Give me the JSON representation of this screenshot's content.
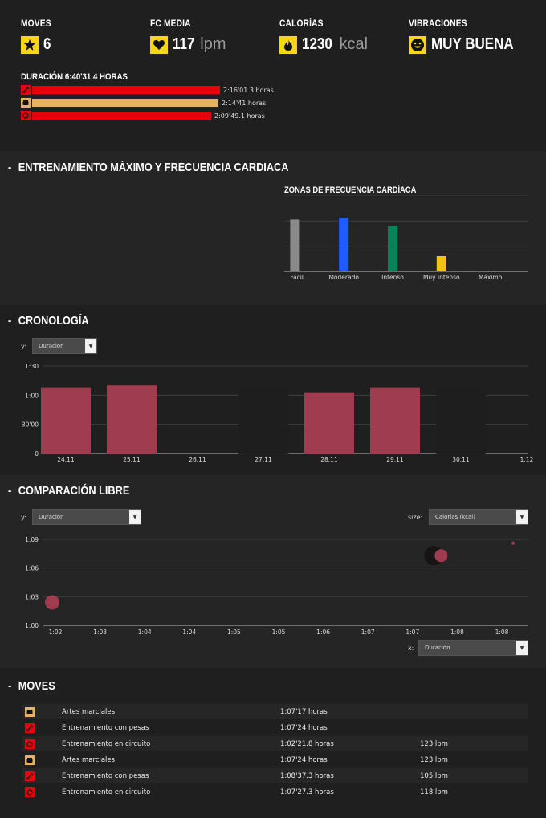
{
  "summary": {
    "moves": {
      "label": "MOVES",
      "value": "6",
      "icon": "star-icon"
    },
    "hr": {
      "label": "FC MEDIA",
      "value": "117",
      "unit": "lpm",
      "icon": "heart-icon"
    },
    "calories": {
      "label": "CALORÍAS",
      "value": "1230",
      "unit": "kcal",
      "icon": "flame-icon"
    },
    "mood": {
      "label": "VIBRACIONES",
      "value": "MUY BUENA",
      "icon": "smiley-icon"
    },
    "duration_title": "DURACIÓN 6:40'31.4 HORAS",
    "durations": [
      {
        "sport": "Entrenamiento con pesas",
        "icon": "weights-icon",
        "text": "2:16'01.3 horas",
        "fraction": 1.0,
        "color": "#e8000b"
      },
      {
        "sport": "Artes marciales",
        "icon": "fist-icon",
        "text": "2:14'41 horas",
        "fraction": 0.99,
        "color": "#e6b260"
      },
      {
        "sport": "Entrenamiento en circuito",
        "icon": "circuit-icon",
        "text": "2:09'49.1 horas",
        "fraction": 0.955,
        "color": "#e8000b"
      }
    ]
  },
  "training": {
    "section_title": "ENTRENAMIENTO MÁXIMO Y FRECUENCIA CARDIACA",
    "zones_title": "ZONAS DE FRECUENCIA CARDÍACA"
  },
  "chart_data": [
    {
      "type": "bar",
      "title": "ZONAS DE FRECUENCIA CARDÍACA",
      "categories": [
        "Fácil",
        "Moderado",
        "Intenso",
        "Muy intenso",
        "Máximo"
      ],
      "values": [
        68,
        70,
        59,
        20,
        0.3
      ],
      "colors": [
        "#8a8a8a",
        "#1f5bff",
        "#00845a",
        "#f1c40f",
        "#e8000b"
      ],
      "ylim": [
        0,
        100
      ],
      "grid": true
    },
    {
      "type": "bar",
      "title": "",
      "categories": [
        "24.11",
        "25.11",
        "26.11",
        "27.11",
        "28.11",
        "29.11",
        "30.11",
        "1.12"
      ],
      "values": [
        68,
        70,
        null,
        67,
        63,
        68,
        67,
        null
      ],
      "muted": [
        false,
        false,
        false,
        true,
        false,
        false,
        true,
        false
      ],
      "yticks": [
        "0",
        "30'00",
        "1:00",
        "1:30"
      ],
      "ylim": [
        0,
        90
      ],
      "color": "#a03c50",
      "muted_color": "#1e1e1f"
    },
    {
      "type": "scatter",
      "xticks": [
        "1:02",
        "1:03",
        "1:04",
        "1:04",
        "1:05",
        "1:05",
        "1:06",
        "1:07",
        "1:07",
        "1:08",
        "1:08"
      ],
      "yticks": [
        "1:00",
        "1:03",
        "1:06",
        "1:09"
      ],
      "xlim": [
        62,
        68.5
      ],
      "ylim": [
        60,
        69
      ],
      "points": [
        {
          "x": 62,
          "y": 62.4,
          "size": 9,
          "color": "#a03c50",
          "muted": false
        },
        {
          "x": 67.3,
          "y": 67.3,
          "size": 12,
          "color": "#151516",
          "muted": true
        },
        {
          "x": 67.4,
          "y": 67.3,
          "size": 8,
          "color": "#a03c50",
          "muted": false
        },
        {
          "x": 68.4,
          "y": 68.6,
          "size": 2,
          "color": "#a03c50",
          "muted": false
        }
      ]
    }
  ],
  "crono": {
    "section_title": "CRONOLOGÍA",
    "y_label": "y:",
    "y_select": "Duración"
  },
  "comparison": {
    "section_title": "COMPARACIÓN LIBRE",
    "y_label": "y:",
    "y_select": "Duración",
    "size_label": "size:",
    "size_select": "Calorías (kcal)",
    "x_label": "x:",
    "x_select": "Duración"
  },
  "moves": {
    "section_title": "MOVES",
    "rows": [
      {
        "icon": "fist-icon",
        "name": "Artes marciales",
        "duration": "1:07'17 horas",
        "hr": ""
      },
      {
        "icon": "weights-icon",
        "name": "Entrenamiento con pesas",
        "duration": "1:07'24 horas",
        "hr": ""
      },
      {
        "icon": "circuit-icon",
        "name": "Entrenamiento en circuito",
        "duration": "1:02'21.8 horas",
        "hr": "123 lpm"
      },
      {
        "icon": "fist-icon",
        "name": "Artes marciales",
        "duration": "1:07'24 horas",
        "hr": "123 lpm"
      },
      {
        "icon": "weights-icon",
        "name": "Entrenamiento con pesas",
        "duration": "1:08'37.3 horas",
        "hr": "105 lpm"
      },
      {
        "icon": "circuit-icon",
        "name": "Entrenamiento en circuito",
        "duration": "1:07'27.3 horas",
        "hr": "118 lpm"
      }
    ]
  }
}
